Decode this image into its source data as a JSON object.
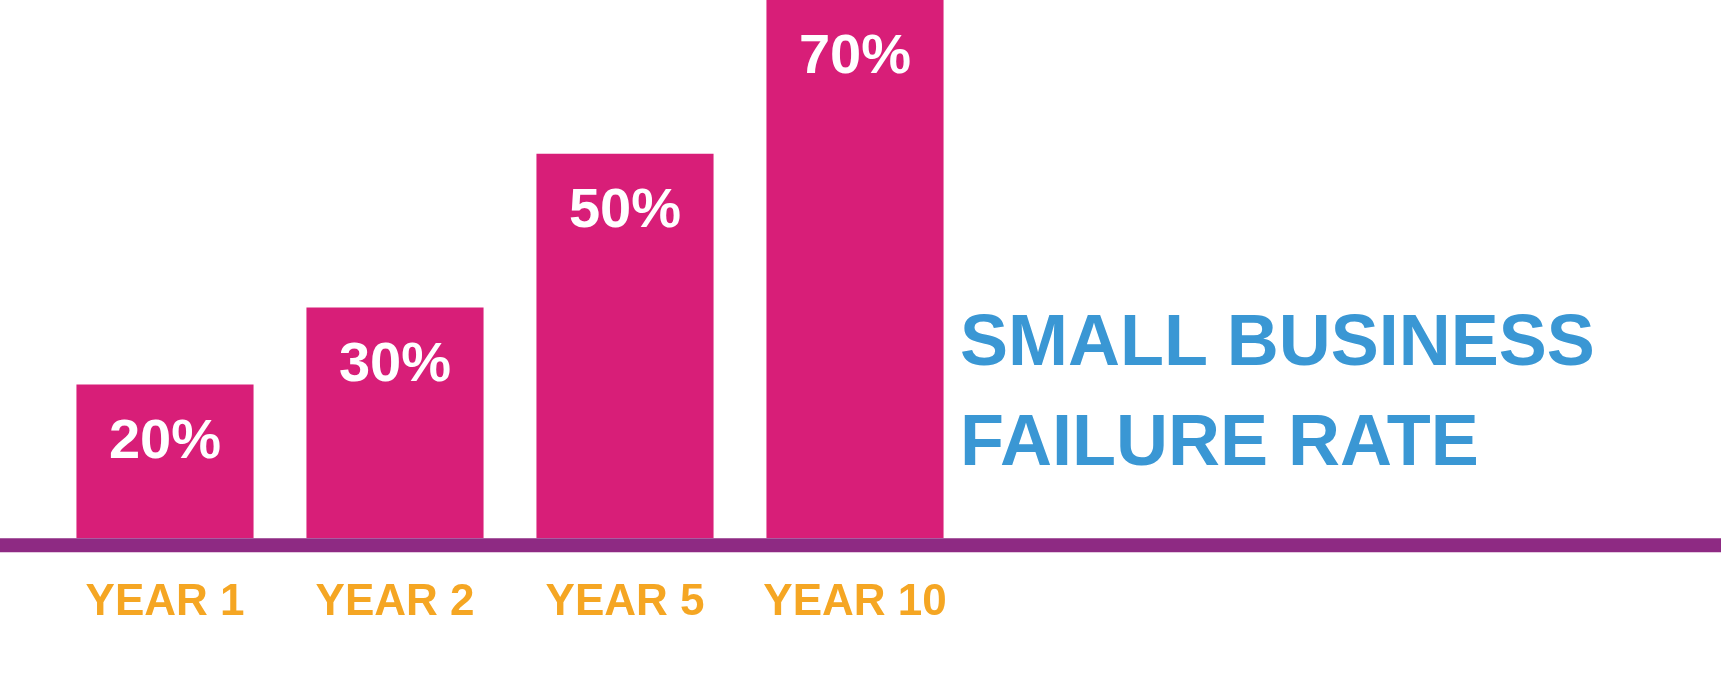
{
  "chart_data": {
    "type": "bar",
    "title": "SMALL BUSINESS FAILURE RATE",
    "categories": [
      "YEAR 1",
      "YEAR 2",
      "YEAR 5",
      "YEAR 10"
    ],
    "values": [
      20,
      30,
      50,
      70
    ],
    "color": "#d81e78",
    "value_labels": [
      "20%",
      "30%",
      "50%",
      "70%"
    ],
    "ylim": [
      0,
      70
    ],
    "grid": false,
    "legend": false
  }
}
